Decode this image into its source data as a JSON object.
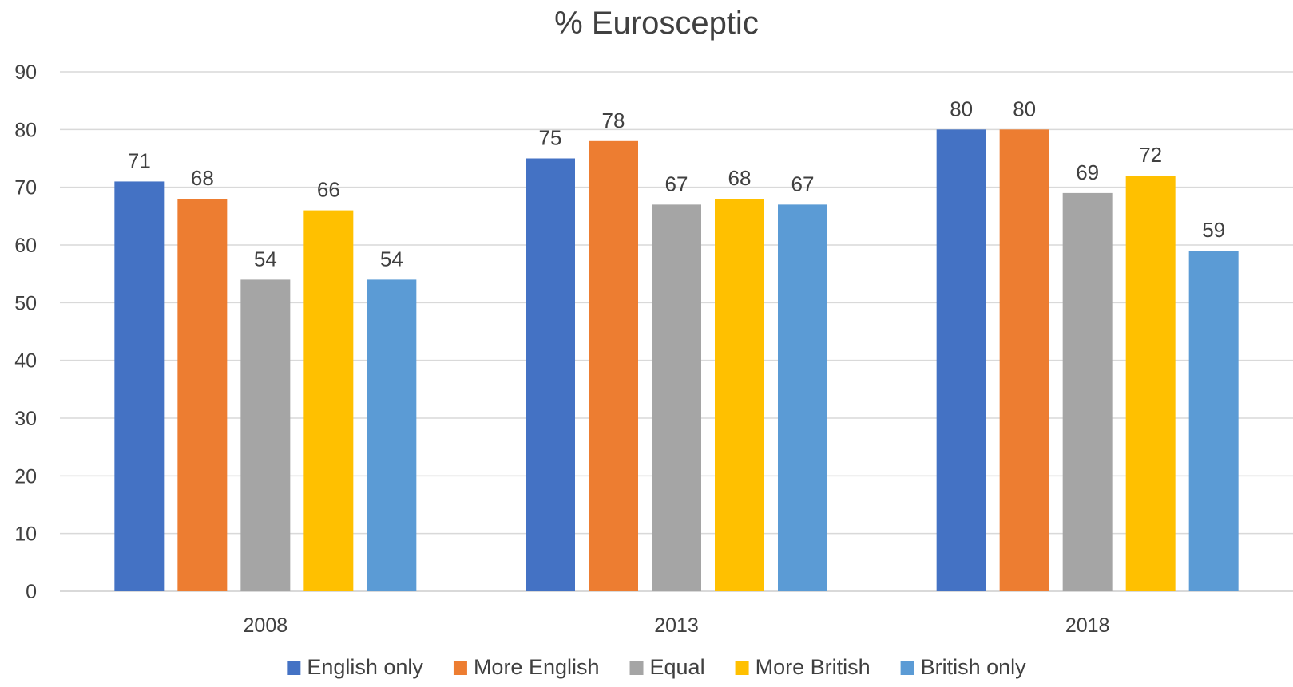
{
  "chart_data": {
    "type": "bar",
    "title": "% Eurosceptic",
    "xlabel": "",
    "ylabel": "",
    "categories": [
      "2008",
      "2013",
      "2018"
    ],
    "ylim": [
      0,
      90
    ],
    "yticks": [
      "0",
      "10",
      "20",
      "30",
      "40",
      "50",
      "60",
      "70",
      "80",
      "90"
    ],
    "grid": true,
    "legend_position": "bottom",
    "data_labels": true,
    "series": [
      {
        "name": "English only",
        "values": [
          71,
          75,
          80
        ],
        "color": "#4472c4"
      },
      {
        "name": "More English",
        "values": [
          68,
          78,
          80
        ],
        "color": "#ed7d31"
      },
      {
        "name": "Equal",
        "values": [
          54,
          67,
          69
        ],
        "color": "#a5a5a5"
      },
      {
        "name": "More British",
        "values": [
          66,
          68,
          72
        ],
        "color": "#ffc000"
      },
      {
        "name": "British only",
        "values": [
          54,
          67,
          59
        ],
        "color": "#5b9bd5"
      }
    ]
  }
}
